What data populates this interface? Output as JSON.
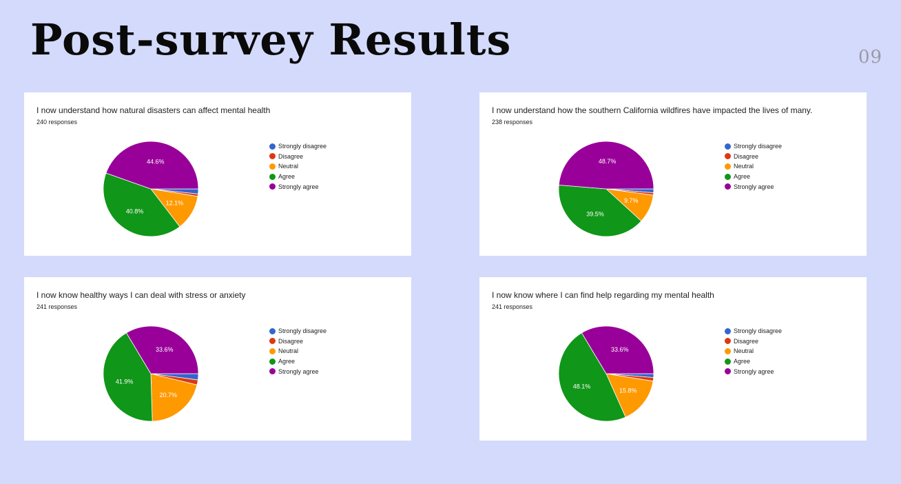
{
  "page": {
    "title": "Post-survey Results",
    "page_number": "09"
  },
  "colors": {
    "background": "#d4dafb",
    "strongly_disagree": "#3366cc",
    "disagree": "#dc3912",
    "neutral": "#ff9900",
    "agree": "#109618",
    "strongly_agree": "#990099"
  },
  "legend": [
    "Strongly disagree",
    "Disagree",
    "Neutral",
    "Agree",
    "Strongly agree"
  ],
  "cards": [
    {
      "title": "I now understand how natural disasters can affect mental health",
      "responses": "240 responses"
    },
    {
      "title": "I now understand how the southern California wildfires have impacted the lives of many.",
      "responses": "238 responses"
    },
    {
      "title": "I now know healthy ways I can deal with stress or anxiety",
      "responses": "241 responses"
    },
    {
      "title": "I now know where I can find help regarding my mental health",
      "responses": "241 responses"
    }
  ],
  "chart_data": [
    {
      "type": "pie",
      "title": "I now understand how natural disasters can affect mental health",
      "categories": [
        "Strongly disagree",
        "Disagree",
        "Neutral",
        "Agree",
        "Strongly agree"
      ],
      "values": [
        1.7,
        0.8,
        12.1,
        40.8,
        44.6
      ],
      "data_labels": [
        "",
        "",
        "12.1%",
        "40.8%",
        "44.6%"
      ],
      "legend_position": "right"
    },
    {
      "type": "pie",
      "title": "I now understand how the southern California wildfires have impacted the lives of many.",
      "categories": [
        "Strongly disagree",
        "Disagree",
        "Neutral",
        "Agree",
        "Strongly agree"
      ],
      "values": [
        1.3,
        0.8,
        9.7,
        39.5,
        48.7
      ],
      "data_labels": [
        "",
        "",
        "9.7%",
        "39.5%",
        "48.7%"
      ],
      "legend_position": "right"
    },
    {
      "type": "pie",
      "title": "I now know healthy ways I can deal with stress or anxiety",
      "categories": [
        "Strongly disagree",
        "Disagree",
        "Neutral",
        "Agree",
        "Strongly agree"
      ],
      "values": [
        2.1,
        1.7,
        20.7,
        41.9,
        33.6
      ],
      "data_labels": [
        "",
        "",
        "20.7%",
        "41.9%",
        "33.6%"
      ],
      "legend_position": "right"
    },
    {
      "type": "pie",
      "title": "I now know where I can find help regarding my mental health",
      "categories": [
        "Strongly disagree",
        "Disagree",
        "Neutral",
        "Agree",
        "Strongly agree"
      ],
      "values": [
        1.3,
        1.2,
        15.8,
        48.1,
        33.6
      ],
      "data_labels": [
        "",
        "",
        "15.8%",
        "48.1%",
        "33.6%"
      ],
      "legend_position": "right"
    }
  ]
}
